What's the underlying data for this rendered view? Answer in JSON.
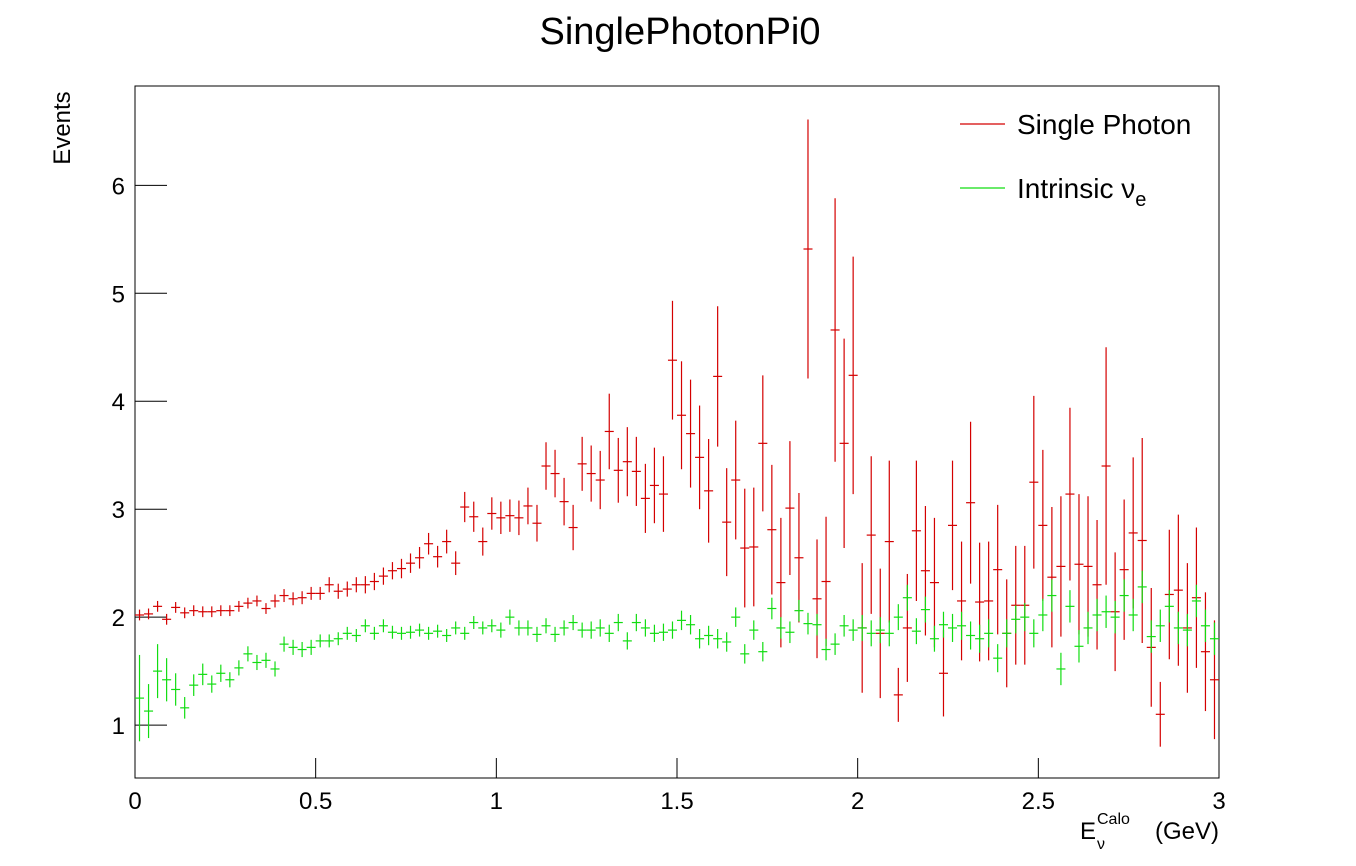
{
  "chart_data": {
    "type": "errorbar",
    "title": "SinglePhotonPi0",
    "y_label": "Events",
    "x_label": {
      "base": "E",
      "sub": "ν",
      "sup": "Calo",
      "unit": "(GeV)"
    },
    "xlim": [
      0,
      3
    ],
    "ylim": [
      0.51,
      6.92
    ],
    "xticks": [
      0,
      0.5,
      1,
      1.5,
      2,
      2.5,
      3
    ],
    "yticks": [
      1,
      2,
      3,
      4,
      5,
      6
    ],
    "legend": "top-right",
    "x": [
      0.0125,
      0.0375,
      0.0625,
      0.0875,
      0.1125,
      0.1375,
      0.1625,
      0.1875,
      0.2125,
      0.2375,
      0.2625,
      0.2875,
      0.3125,
      0.3375,
      0.3625,
      0.3875,
      0.4125,
      0.4375,
      0.4625,
      0.4875,
      0.5125,
      0.5375,
      0.5625,
      0.5875,
      0.6125,
      0.6375,
      0.6625,
      0.6875,
      0.7125,
      0.7375,
      0.7625,
      0.7875,
      0.8125,
      0.8375,
      0.8625,
      0.8875,
      0.9125,
      0.9375,
      0.9625,
      0.9875,
      1.0125,
      1.0375,
      1.0625,
      1.0875,
      1.1125,
      1.1375,
      1.1625,
      1.1875,
      1.2125,
      1.2375,
      1.2625,
      1.2875,
      1.3125,
      1.3375,
      1.3625,
      1.3875,
      1.4125,
      1.4375,
      1.4625,
      1.4875,
      1.5125,
      1.5375,
      1.5625,
      1.5875,
      1.6125,
      1.6375,
      1.6625,
      1.6875,
      1.7125,
      1.7375,
      1.7625,
      1.7875,
      1.8125,
      1.8375,
      1.8625,
      1.8875,
      1.9125,
      1.9375,
      1.9625,
      1.9875,
      2.0125,
      2.0375,
      2.0625,
      2.0875,
      2.1125,
      2.1375,
      2.1625,
      2.1875,
      2.2125,
      2.2375,
      2.2625,
      2.2875,
      2.3125,
      2.3375,
      2.3625,
      2.3875,
      2.4125,
      2.4375,
      2.4625,
      2.4875,
      2.5125,
      2.5375,
      2.5625,
      2.5875,
      2.6125,
      2.6375,
      2.6625,
      2.6875,
      2.7125,
      2.7375,
      2.7625,
      2.7875,
      2.8125,
      2.8375,
      2.8625,
      2.8875,
      2.9125,
      2.9375,
      2.9625,
      2.9875
    ],
    "series": [
      {
        "name": "Single Photon",
        "color": "#d40000",
        "values": [
          2.02,
          2.03,
          2.1,
          1.98,
          2.09,
          2.04,
          2.06,
          2.05,
          2.05,
          2.06,
          2.06,
          2.1,
          2.13,
          2.15,
          2.08,
          2.15,
          2.2,
          2.17,
          2.18,
          2.22,
          2.22,
          2.3,
          2.24,
          2.26,
          2.3,
          2.3,
          2.33,
          2.38,
          2.43,
          2.45,
          2.5,
          2.55,
          2.68,
          2.56,
          2.7,
          2.5,
          3.02,
          2.93,
          2.7,
          2.96,
          2.92,
          2.94,
          2.92,
          3.03,
          2.87,
          3.4,
          3.33,
          3.07,
          2.83,
          3.42,
          3.33,
          3.27,
          3.72,
          3.36,
          3.44,
          3.35,
          3.1,
          3.22,
          3.14,
          4.38,
          3.87,
          3.7,
          3.48,
          3.17,
          4.23,
          2.88,
          3.27,
          2.64,
          2.65,
          3.61,
          2.81,
          2.32,
          3.01,
          2.55,
          5.41,
          2.17,
          2.33,
          4.66,
          3.61,
          4.24,
          1.9,
          2.76,
          1.85,
          2.7,
          1.28,
          1.9,
          2.8,
          2.43,
          2.32,
          1.48,
          2.85,
          2.15,
          3.06,
          2.14,
          2.15,
          2.44,
          1.85,
          2.11,
          2.11,
          3.25,
          2.85,
          2.37,
          2.47,
          3.14,
          2.49,
          2.47,
          2.3,
          3.4,
          2.05,
          2.44,
          2.78,
          2.71,
          1.72,
          1.1,
          2.21,
          2.25,
          1.9,
          2.18,
          1.68,
          1.42
        ],
        "errors": [
          0.05,
          0.05,
          0.05,
          0.05,
          0.05,
          0.05,
          0.05,
          0.05,
          0.05,
          0.05,
          0.05,
          0.05,
          0.05,
          0.05,
          0.05,
          0.06,
          0.06,
          0.06,
          0.06,
          0.06,
          0.06,
          0.07,
          0.07,
          0.07,
          0.07,
          0.08,
          0.08,
          0.08,
          0.08,
          0.09,
          0.09,
          0.1,
          0.1,
          0.1,
          0.11,
          0.11,
          0.14,
          0.14,
          0.13,
          0.15,
          0.15,
          0.15,
          0.16,
          0.17,
          0.17,
          0.22,
          0.22,
          0.22,
          0.21,
          0.25,
          0.26,
          0.27,
          0.35,
          0.3,
          0.32,
          0.32,
          0.32,
          0.35,
          0.35,
          0.55,
          0.5,
          0.5,
          0.48,
          0.48,
          0.65,
          0.5,
          0.55,
          0.55,
          0.55,
          0.63,
          0.6,
          0.6,
          0.62,
          0.6,
          1.2,
          0.55,
          0.6,
          1.22,
          0.97,
          1.1,
          0.6,
          0.73,
          0.6,
          0.75,
          0.25,
          0.5,
          0.65,
          0.6,
          0.6,
          0.4,
          0.6,
          0.55,
          0.75,
          0.55,
          0.55,
          0.6,
          0.5,
          0.55,
          0.55,
          0.8,
          0.7,
          0.65,
          0.65,
          0.8,
          0.65,
          0.65,
          0.6,
          1.1,
          0.55,
          0.65,
          0.7,
          0.95,
          0.55,
          0.3,
          0.6,
          0.7,
          0.6,
          0.65,
          0.55,
          0.55
        ]
      },
      {
        "name": "Intrinsic ν",
        "name_subscript": "e",
        "color": "#11dd11",
        "values": [
          1.25,
          1.13,
          1.5,
          1.42,
          1.33,
          1.16,
          1.37,
          1.47,
          1.38,
          1.48,
          1.42,
          1.53,
          1.66,
          1.58,
          1.6,
          1.52,
          1.75,
          1.72,
          1.7,
          1.72,
          1.78,
          1.78,
          1.8,
          1.85,
          1.83,
          1.92,
          1.85,
          1.92,
          1.86,
          1.85,
          1.86,
          1.88,
          1.85,
          1.87,
          1.83,
          1.9,
          1.85,
          1.95,
          1.9,
          1.92,
          1.88,
          2.0,
          1.9,
          1.9,
          1.84,
          1.92,
          1.84,
          1.9,
          1.95,
          1.88,
          1.88,
          1.9,
          1.85,
          1.95,
          1.78,
          1.95,
          1.9,
          1.85,
          1.86,
          1.88,
          1.97,
          1.93,
          1.8,
          1.83,
          1.8,
          1.77,
          2.0,
          1.66,
          1.88,
          1.68,
          2.08,
          1.9,
          1.86,
          2.06,
          1.94,
          1.93,
          1.7,
          1.75,
          1.92,
          1.88,
          1.9,
          1.85,
          1.88,
          1.85,
          2.0,
          2.18,
          1.87,
          2.07,
          1.8,
          1.93,
          1.9,
          1.92,
          1.83,
          1.8,
          1.85,
          1.62,
          1.85,
          1.98,
          2.0,
          1.85,
          2.02,
          2.2,
          1.52,
          2.1,
          1.73,
          1.9,
          2.02,
          2.05,
          2.0,
          2.2,
          2.02,
          2.28,
          1.82,
          1.92,
          2.1,
          1.9,
          1.88,
          2.15,
          1.92,
          1.8
        ],
        "errors": [
          0.4,
          0.25,
          0.25,
          0.2,
          0.15,
          0.1,
          0.1,
          0.1,
          0.08,
          0.08,
          0.07,
          0.07,
          0.07,
          0.07,
          0.07,
          0.07,
          0.07,
          0.07,
          0.07,
          0.07,
          0.06,
          0.06,
          0.06,
          0.06,
          0.06,
          0.06,
          0.06,
          0.06,
          0.06,
          0.06,
          0.06,
          0.06,
          0.06,
          0.06,
          0.06,
          0.06,
          0.06,
          0.06,
          0.06,
          0.06,
          0.07,
          0.07,
          0.07,
          0.07,
          0.07,
          0.07,
          0.07,
          0.07,
          0.07,
          0.07,
          0.08,
          0.08,
          0.08,
          0.08,
          0.08,
          0.08,
          0.08,
          0.08,
          0.08,
          0.08,
          0.09,
          0.09,
          0.09,
          0.09,
          0.09,
          0.09,
          0.09,
          0.09,
          0.09,
          0.09,
          0.1,
          0.1,
          0.1,
          0.1,
          0.1,
          0.1,
          0.1,
          0.1,
          0.1,
          0.1,
          0.12,
          0.12,
          0.12,
          0.12,
          0.12,
          0.12,
          0.12,
          0.12,
          0.12,
          0.12,
          0.13,
          0.13,
          0.13,
          0.13,
          0.13,
          0.13,
          0.13,
          0.13,
          0.13,
          0.13,
          0.15,
          0.15,
          0.15,
          0.15,
          0.15,
          0.15,
          0.15,
          0.15,
          0.15,
          0.15,
          0.15,
          0.15,
          0.15,
          0.15,
          0.15,
          0.15,
          0.15,
          0.15,
          0.15,
          0.15
        ]
      }
    ]
  }
}
